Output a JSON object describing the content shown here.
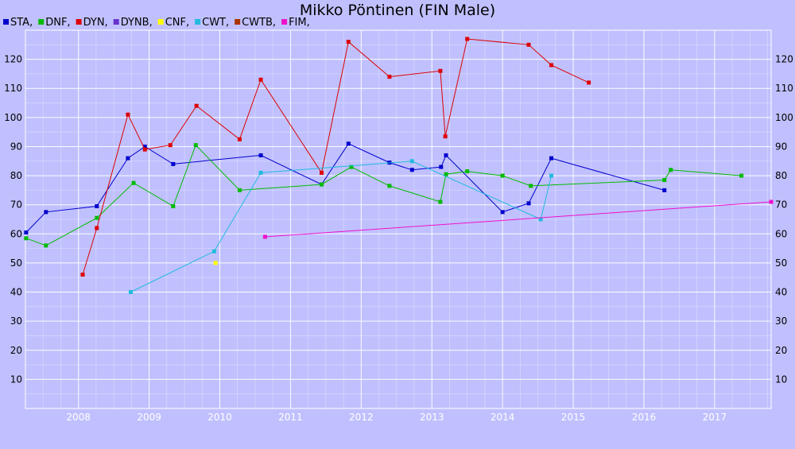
{
  "chart_data": {
    "type": "line",
    "title": "Mikko Pöntinen (FIN Male)",
    "xlabel": "",
    "ylabel": "",
    "xlim": [
      2007.25,
      2017.8
    ],
    "ylim": [
      0,
      130
    ],
    "grid": true,
    "legend_position": "top-left",
    "background_color": "#c0c0ff",
    "grid_color": "#ffffff",
    "x_ticks": [
      "2008",
      "2009",
      "2010",
      "2011",
      "2012",
      "2013",
      "2014",
      "2015",
      "2016",
      "2017"
    ],
    "y_ticks": [
      "10",
      "20",
      "30",
      "40",
      "50",
      "60",
      "70",
      "80",
      "90",
      "100",
      "110",
      "120"
    ],
    "series": [
      {
        "name": "STA,",
        "color": "#0000cc",
        "points": [
          [
            2007.26,
            60.5
          ],
          [
            2007.54,
            67.5
          ],
          [
            2008.26,
            69.5
          ],
          [
            2008.7,
            86
          ],
          [
            2008.94,
            90
          ],
          [
            2009.34,
            84
          ],
          [
            2010.58,
            87
          ],
          [
            2011.44,
            77
          ],
          [
            2011.82,
            91
          ],
          [
            2012.4,
            84.5
          ],
          [
            2012.72,
            82
          ],
          [
            2013.13,
            83
          ],
          [
            2013.2,
            87
          ],
          [
            2014.0,
            67.5
          ],
          [
            2014.37,
            70.5
          ],
          [
            2014.69,
            86
          ],
          [
            2016.29,
            75
          ]
        ]
      },
      {
        "name": "DNF,",
        "color": "#00bb00",
        "points": [
          [
            2007.26,
            58.5
          ],
          [
            2007.54,
            56
          ],
          [
            2008.26,
            65.5
          ],
          [
            2008.78,
            77.5
          ],
          [
            2009.34,
            69.5
          ],
          [
            2009.66,
            90.5
          ],
          [
            2010.28,
            75
          ],
          [
            2011.44,
            77
          ],
          [
            2011.86,
            83
          ],
          [
            2012.4,
            76.5
          ],
          [
            2013.12,
            71
          ],
          [
            2013.2,
            80.5
          ],
          [
            2013.5,
            81.5
          ],
          [
            2014.0,
            80
          ],
          [
            2014.4,
            76.5
          ],
          [
            2016.29,
            78.5
          ],
          [
            2016.38,
            82
          ],
          [
            2017.38,
            80
          ]
        ]
      },
      {
        "name": "DYN,",
        "color": "#dd0000",
        "points": [
          [
            2008.06,
            46
          ],
          [
            2008.26,
            62
          ],
          [
            2008.7,
            101
          ],
          [
            2008.94,
            89
          ],
          [
            2009.3,
            90.5
          ],
          [
            2009.67,
            104
          ],
          [
            2010.28,
            92.5
          ],
          [
            2010.58,
            113
          ],
          [
            2011.44,
            81
          ],
          [
            2011.82,
            126
          ],
          [
            2012.4,
            114
          ],
          [
            2013.12,
            116
          ],
          [
            2013.19,
            93.5
          ],
          [
            2013.5,
            127
          ],
          [
            2014.37,
            125
          ],
          [
            2014.69,
            118
          ],
          [
            2015.22,
            112
          ]
        ]
      },
      {
        "name": "DYNB,",
        "color": "#6633cc",
        "points": []
      },
      {
        "name": "CNF,",
        "color": "#ffff00",
        "points": [
          [
            2009.94,
            50
          ]
        ]
      },
      {
        "name": "CWT,",
        "color": "#22bbdd",
        "points": [
          [
            2008.74,
            40
          ],
          [
            2009.92,
            54
          ],
          [
            2010.58,
            81
          ],
          [
            2012.72,
            85
          ],
          [
            2014.54,
            65
          ],
          [
            2014.69,
            80
          ]
        ]
      },
      {
        "name": "CWTB,",
        "color": "#aa3300",
        "points": []
      },
      {
        "name": "FIM,",
        "color": "#ee11cc",
        "points": [
          [
            2010.64,
            59
          ],
          [
            2017.8,
            71
          ]
        ]
      }
    ]
  }
}
